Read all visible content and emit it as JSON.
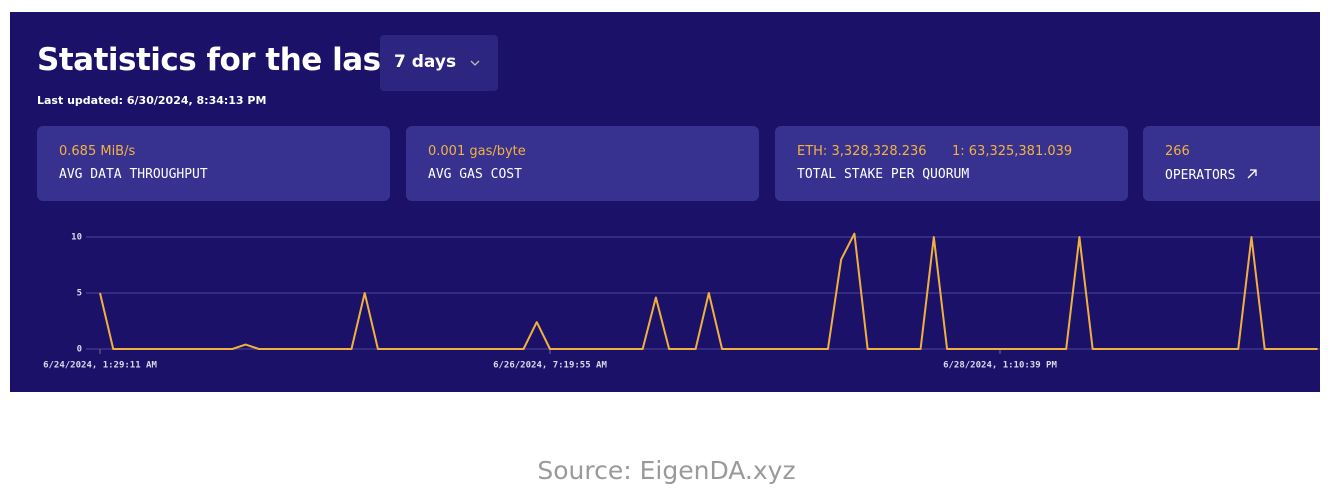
{
  "header": {
    "title": "Statistics for the last",
    "dropdown": "7 days",
    "last_updated": "Last updated: 6/30/2024, 8:34:13 PM"
  },
  "cards": [
    {
      "values": [
        "0.685 MiB/s"
      ],
      "label": "AVG DATA THROUGHPUT"
    },
    {
      "values": [
        "0.001 gas/byte"
      ],
      "label": "AVG GAS COST"
    },
    {
      "values": [
        "ETH: 3,328,328.236",
        "1: 63,325,381.039"
      ],
      "label": "TOTAL STAKE PER QUORUM"
    },
    {
      "values": [
        "266"
      ],
      "label": "OPERATORS"
    }
  ],
  "chart_data": {
    "type": "line",
    "categories": [
      "6/24/2024, 1:29:11 AM",
      null,
      null,
      null,
      null,
      null,
      null,
      null,
      null,
      null,
      null,
      null,
      null,
      null,
      null,
      null,
      null,
      null,
      null,
      null,
      null,
      null,
      null,
      null,
      null,
      null,
      null,
      null,
      null,
      null,
      null,
      null,
      null,
      null,
      "6/26/2024, 7:19:55 AM",
      null,
      null,
      null,
      null,
      null,
      null,
      null,
      null,
      null,
      null,
      null,
      null,
      null,
      null,
      null,
      null,
      null,
      null,
      null,
      null,
      null,
      null,
      null,
      null,
      null,
      null,
      null,
      null,
      null,
      null,
      null,
      null,
      null,
      "6/28/2024, 1:10:39 PM",
      null,
      null,
      null,
      null,
      null,
      null,
      null,
      null,
      null,
      null,
      null,
      null,
      null,
      null,
      null,
      null,
      null,
      null,
      null,
      null,
      null,
      null,
      null,
      null
    ],
    "series": [
      {
        "color": "#f0b040",
        "values": [
          5,
          0,
          0,
          0,
          0,
          0,
          0,
          0,
          0,
          0,
          0,
          0.4,
          0,
          0,
          0,
          0,
          0,
          0,
          0,
          0,
          5,
          0,
          0,
          0,
          0,
          0,
          0,
          0,
          0,
          0,
          0,
          0,
          0,
          2.4,
          0,
          0,
          0,
          0,
          0,
          0,
          0,
          0,
          4.6,
          0,
          0,
          0,
          5,
          0,
          0,
          0,
          0,
          0,
          0,
          0,
          0,
          0,
          8,
          10.3,
          0,
          0,
          0,
          0,
          0,
          10,
          0,
          0,
          0,
          0,
          0,
          0,
          0,
          0,
          0,
          0,
          10,
          0,
          0,
          0,
          0,
          0,
          0,
          0,
          0,
          0,
          0,
          0,
          0,
          10,
          0,
          0,
          0,
          0,
          0
        ]
      }
    ],
    "ylim": [
      0,
      10.5
    ],
    "yticks": [
      0,
      5,
      10
    ],
    "grid": true
  },
  "source": "Source: EigenDA.xyz"
}
